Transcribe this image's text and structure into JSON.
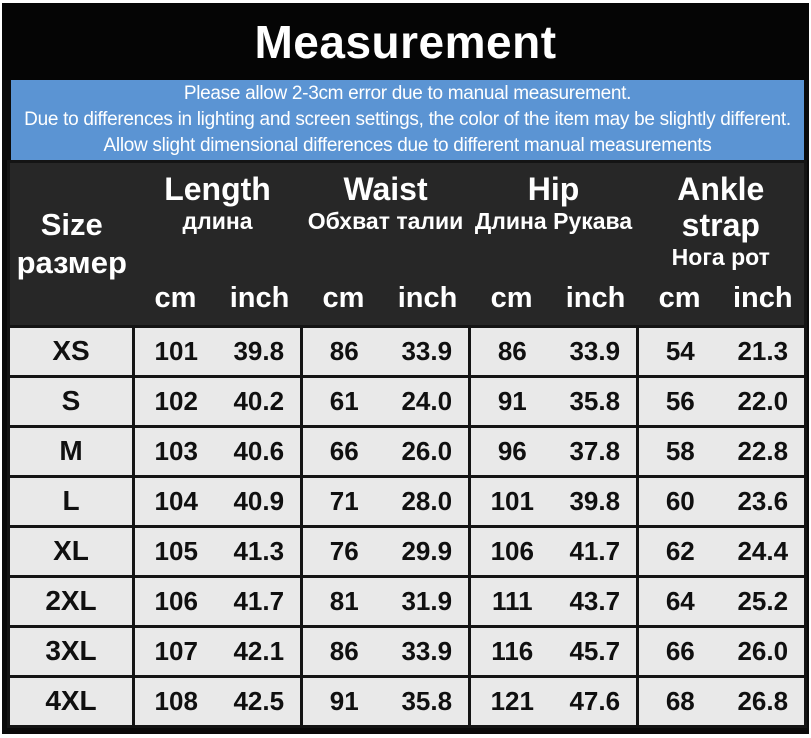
{
  "title": "Measurement",
  "disclaimer": {
    "lines": [
      "Please allow 2-3cm error due to manual measurement.",
      "Due to differences in lighting and screen settings, the color of the item may be slightly different.",
      "Allow slight dimensional differences due to different manual measurements"
    ]
  },
  "table": {
    "size_header": {
      "en": "Size",
      "ru": "размер"
    },
    "groups": [
      {
        "en": "Length",
        "ru": "длина"
      },
      {
        "en": "Waist",
        "ru": "Обхват талии"
      },
      {
        "en": "Hip",
        "ru": "Длина Рукава"
      },
      {
        "en": "Ankle strap",
        "ru": "Нога рот"
      }
    ],
    "unit_labels": {
      "cm": "cm",
      "inch": "inch"
    },
    "rows": [
      {
        "size": "XS",
        "values": [
          "101",
          "39.8",
          "86",
          "33.9",
          "86",
          "33.9",
          "54",
          "21.3"
        ]
      },
      {
        "size": "S",
        "values": [
          "102",
          "40.2",
          "61",
          "24.0",
          "91",
          "35.8",
          "56",
          "22.0"
        ]
      },
      {
        "size": "M",
        "values": [
          "103",
          "40.6",
          "66",
          "26.0",
          "96",
          "37.8",
          "58",
          "22.8"
        ]
      },
      {
        "size": "L",
        "values": [
          "104",
          "40.9",
          "71",
          "28.0",
          "101",
          "39.8",
          "60",
          "23.6"
        ]
      },
      {
        "size": "XL",
        "values": [
          "105",
          "41.3",
          "76",
          "29.9",
          "106",
          "41.7",
          "62",
          "24.4"
        ]
      },
      {
        "size": "2XL",
        "values": [
          "106",
          "41.7",
          "81",
          "31.9",
          "111",
          "43.7",
          "64",
          "25.2"
        ]
      },
      {
        "size": "3XL",
        "values": [
          "107",
          "42.1",
          "86",
          "33.9",
          "116",
          "45.7",
          "66",
          "26.0"
        ]
      },
      {
        "size": "4XL",
        "values": [
          "108",
          "42.5",
          "91",
          "35.8",
          "121",
          "47.6",
          "68",
          "26.8"
        ]
      }
    ]
  },
  "colors": {
    "banner_bg": "#5b94d3",
    "title_bg": "#050505",
    "frame_bg": "#0a0a0a",
    "header_bg": "#272727",
    "row_bg": "#e9e9e9",
    "border": "#141414",
    "text_light": "#ffffff",
    "text_dark": "#101010"
  },
  "chart_data": {
    "type": "table",
    "title": "Measurement",
    "columns": [
      "Size",
      "Length cm",
      "Length inch",
      "Waist cm",
      "Waist inch",
      "Hip cm",
      "Hip inch",
      "Ankle strap cm",
      "Ankle strap inch"
    ],
    "rows": [
      [
        "XS",
        101,
        39.8,
        86,
        33.9,
        86,
        33.9,
        54,
        21.3
      ],
      [
        "S",
        102,
        40.2,
        61,
        24.0,
        91,
        35.8,
        56,
        22.0
      ],
      [
        "M",
        103,
        40.6,
        66,
        26.0,
        96,
        37.8,
        58,
        22.8
      ],
      [
        "L",
        104,
        40.9,
        71,
        28.0,
        101,
        39.8,
        60,
        23.6
      ],
      [
        "XL",
        105,
        41.3,
        76,
        29.9,
        106,
        41.7,
        62,
        24.4
      ],
      [
        "2XL",
        106,
        41.7,
        81,
        31.9,
        111,
        43.7,
        64,
        25.2
      ],
      [
        "3XL",
        107,
        42.1,
        86,
        33.9,
        116,
        45.7,
        66,
        26.0
      ],
      [
        "4XL",
        108,
        42.5,
        91,
        35.8,
        121,
        47.6,
        68,
        26.8
      ]
    ]
  }
}
